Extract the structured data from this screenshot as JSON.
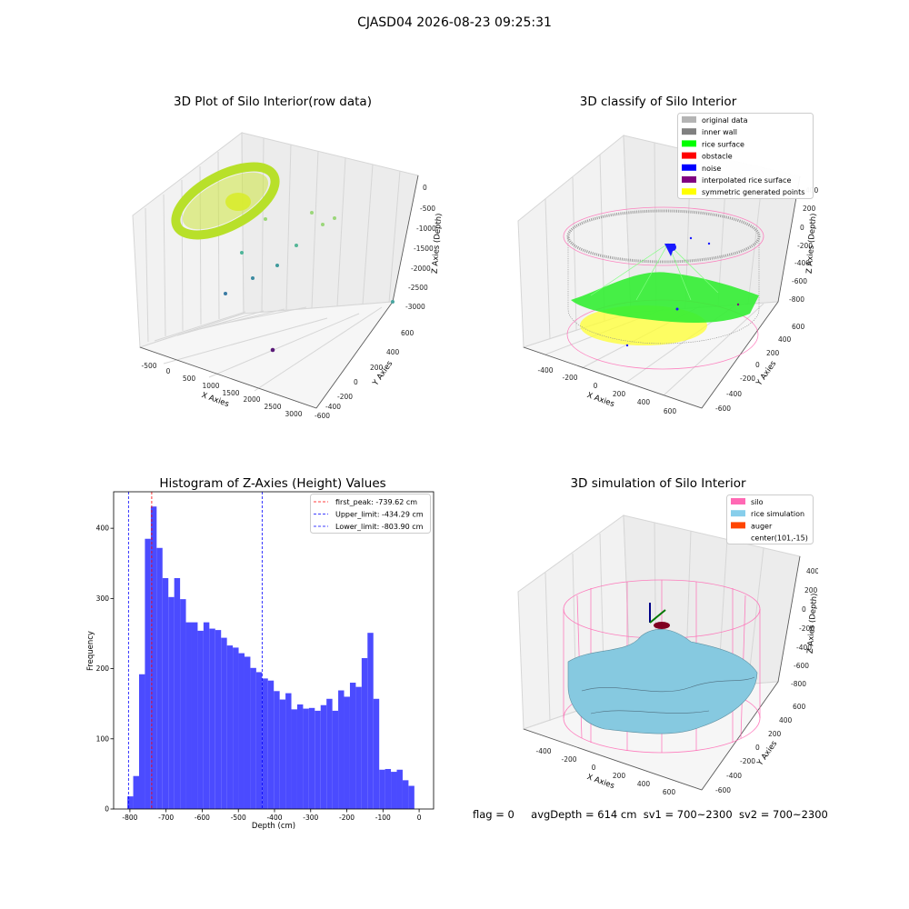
{
  "figure_title": "CJASD04 2026-08-23 09:25:31",
  "status_line": {
    "flag": "flag = 0",
    "avg_depth": "avgDepth = 614 cm",
    "sv1": "sv1 = 700~2300",
    "sv2": "sv2 = 700~2300"
  },
  "colors": {
    "histogram_bar": "#4b4bff",
    "first_peak": "#ff0000",
    "limits": "#0000ff",
    "rice_surface": "#00ff00",
    "obstacle": "#ff0000",
    "noise": "#0000ff",
    "interpolated": "#800080",
    "symmetric": "#ffff00",
    "original": "#b4b4b4",
    "inner_wall": "#808080",
    "silo": "#ff69b4",
    "rice_simulation": "#87ceeb",
    "auger": "#ff4500"
  },
  "chart_data": [
    {
      "type": "scatter",
      "title": "3D Plot of Silo Interior(row data)",
      "xlabel": "X Axies",
      "ylabel": "Y Axies",
      "zlabel": "Z Axies (Depth)",
      "x_ticks": [
        "-500",
        "0",
        "500",
        "1000",
        "1500",
        "2000",
        "2500",
        "3000"
      ],
      "y_ticks": [
        "600",
        "400",
        "200",
        "0",
        "-200",
        "-400",
        "-600"
      ],
      "z_ticks": [
        "0",
        "-500",
        "-1000",
        "-1500",
        "-2000",
        "-2500",
        "-3000"
      ],
      "xlim": [
        -600,
        3200
      ],
      "ylim": [
        -700,
        700
      ],
      "zlim": [
        -3000,
        0
      ]
    },
    {
      "type": "scatter",
      "title": "3D classify of Silo Interior",
      "xlabel": "X Axies",
      "ylabel": "Y Axies",
      "zlabel": "Z Axies (Depth)",
      "x_ticks": [
        "-400",
        "-200",
        "0",
        "200",
        "400",
        "600"
      ],
      "y_ticks": [
        "600",
        "400",
        "200",
        "0",
        "-200",
        "-400",
        "-600"
      ],
      "z_ticks": [
        "400",
        "200",
        "0",
        "-200",
        "-400",
        "-600",
        "-800"
      ],
      "legend_position": "top-right",
      "legend": [
        {
          "label": "original data",
          "color": "#b4b4b4"
        },
        {
          "label": "inner wall",
          "color": "#808080"
        },
        {
          "label": "rice surface",
          "color": "#00ff00"
        },
        {
          "label": "obstacle",
          "color": "#ff0000"
        },
        {
          "label": "noise",
          "color": "#0000ff"
        },
        {
          "label": "interpolated rice surface",
          "color": "#800080"
        },
        {
          "label": "symmetric generated points",
          "color": "#ffff00"
        }
      ]
    },
    {
      "type": "bar",
      "title": "Histogram of Z-Axies (Height) Values",
      "xlabel": "Depth (cm)",
      "ylabel": "Frequency",
      "xlim": [
        -845,
        40
      ],
      "ylim": [
        0,
        452
      ],
      "x_ticks": [
        -800,
        -700,
        -600,
        -500,
        -400,
        -300,
        -200,
        -100,
        0
      ],
      "y_ticks": [
        0,
        100,
        200,
        300,
        400
      ],
      "bin_width": 16.2,
      "bin_start": -807,
      "values": [
        18,
        47,
        192,
        385,
        431,
        372,
        329,
        302,
        329,
        299,
        266,
        266,
        254,
        266,
        257,
        255,
        244,
        233,
        230,
        222,
        217,
        201,
        195,
        186,
        183,
        168,
        156,
        165,
        142,
        149,
        143,
        144,
        140,
        148,
        157,
        140,
        169,
        160,
        180,
        174,
        215,
        251,
        157,
        56,
        57,
        53,
        56,
        41,
        33
      ],
      "legend_position": "top-right",
      "lines": [
        {
          "label": "first_peak: -739.62 cm",
          "x": -739.62,
          "color": "#ff0000"
        },
        {
          "label": "Upper_limit: -434.29 cm",
          "x": -434.29,
          "color": "#0000ff"
        },
        {
          "label": "Lower_limit: -803.90 cm",
          "x": -803.9,
          "color": "#0000ff"
        }
      ]
    },
    {
      "type": "scatter",
      "title": "3D simulation of Silo Interior",
      "xlabel": "X Axies",
      "ylabel": "Y Axies",
      "zlabel": "Z Axies (Depth)",
      "x_ticks": [
        "-400",
        "-200",
        "0",
        "200",
        "400",
        "600"
      ],
      "y_ticks": [
        "600",
        "400",
        "200",
        "0",
        "-200",
        "-400",
        "-600"
      ],
      "z_ticks": [
        "400",
        "200",
        "0",
        "-200",
        "-400",
        "-600",
        "-800"
      ],
      "legend_position": "top-right",
      "legend": [
        {
          "label": "silo",
          "color": "#ff69b4"
        },
        {
          "label": "rice simulation",
          "color": "#87ceeb"
        },
        {
          "label": "auger",
          "color": "#ff4500"
        },
        {
          "label": "center(101,-15)",
          "color": ""
        }
      ]
    }
  ]
}
